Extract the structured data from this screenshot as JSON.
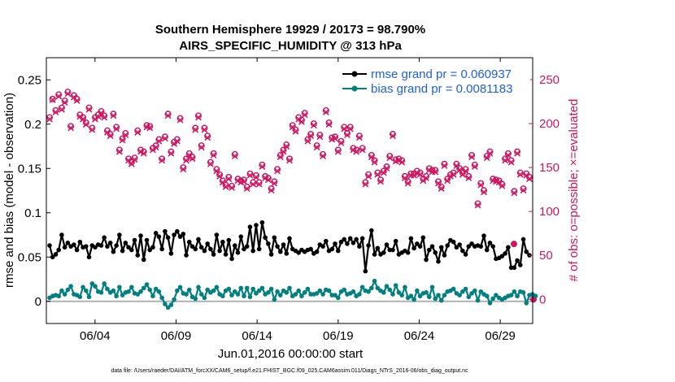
{
  "chart_data": {
    "type": "line",
    "title": [
      "Southern Hemisphere 19929 / 20173 = 98.790%",
      "AIRS_SPECIFIC_HUMIDITY @ 313 hPa"
    ],
    "xlabel": "Jun.01,2016 00:00:00 start",
    "ylabel_left": "rmse and bias (model - observation)",
    "ylabel_right": "# of obs: o=possible; ×=evaluated",
    "x_ticks": [
      "06/04",
      "06/09",
      "06/14",
      "06/19",
      "06/24",
      "06/29"
    ],
    "x_tick_days": [
      4,
      9,
      14,
      19,
      24,
      29
    ],
    "xlim": [
      1,
      31
    ],
    "ylim_left": [
      -0.025,
      0.275
    ],
    "y_ticks_left": [
      "0",
      "0.05",
      "0.1",
      "0.15",
      "0.2",
      "0.25"
    ],
    "y_tick_values_left": [
      0,
      0.05,
      0.1,
      0.15,
      0.2,
      0.25
    ],
    "ylim_right": [
      -27.5,
      275
    ],
    "y_ticks_right": [
      "0",
      "50",
      "100",
      "150",
      "200",
      "250"
    ],
    "y_tick_values_right": [
      0,
      50,
      100,
      150,
      200,
      250
    ],
    "colors": {
      "rmse": "#000000",
      "bias": "#00807f",
      "obs": "#d0155f",
      "legend_text": "#1f5fe0",
      "zero_line": "#b0b0b0"
    },
    "series": [
      {
        "name": "rmse grand pr = 0.060937",
        "axis": "left",
        "values": [
          0.063,
          0.05,
          0.053,
          0.058,
          0.075,
          0.061,
          0.066,
          0.062,
          0.064,
          0.058,
          0.067,
          0.061,
          0.062,
          0.05,
          0.063,
          0.061,
          0.064,
          0.063,
          0.072,
          0.062,
          0.066,
          0.056,
          0.063,
          0.075,
          0.057,
          0.066,
          0.061,
          0.058,
          0.069,
          0.052,
          0.074,
          0.047,
          0.069,
          0.058,
          0.061,
          0.077,
          0.073,
          0.059,
          0.079,
          0.072,
          0.054,
          0.075,
          0.079,
          0.073,
          0.076,
          0.052,
          0.067,
          0.062,
          0.059,
          0.07,
          0.061,
          0.057,
          0.065,
          0.059,
          0.053,
          0.075,
          0.057,
          0.067,
          0.053,
          0.069,
          0.048,
          0.063,
          0.055,
          0.073,
          0.059,
          0.062,
          0.084,
          0.057,
          0.086,
          0.059,
          0.089,
          0.072,
          0.065,
          0.053,
          0.072,
          0.062,
          0.056,
          0.064,
          0.054,
          0.071,
          0.059,
          0.057,
          0.055,
          0.058,
          0.056,
          0.058,
          0.059,
          0.054,
          0.056,
          0.064,
          0.062,
          0.068,
          0.057,
          0.059,
          0.065,
          0.057,
          0.067,
          0.07,
          0.065,
          0.071,
          0.066,
          0.07,
          0.062,
          0.071,
          0.034,
          0.063,
          0.08,
          0.053,
          0.06,
          0.053,
          0.055,
          0.064,
          0.058,
          0.058,
          0.068,
          0.053,
          0.055,
          0.057,
          0.055,
          0.071,
          0.06,
          0.065,
          0.062,
          0.072,
          0.047,
          0.058,
          0.062,
          0.055,
          0.045,
          0.061,
          0.052,
          0.063,
          0.069,
          0.067,
          0.061,
          0.064,
          0.057,
          0.053,
          0.062,
          0.065,
          0.062,
          0.063,
          0.062,
          0.074,
          0.058,
          0.066,
          0.062,
          0.048,
          0.049,
          0.051,
          0.054,
          0.061,
          0.038,
          0.038,
          0.046,
          0.041,
          0.07,
          0.056,
          0.052
        ]
      },
      {
        "name": "bias grand pr = 0.0081183",
        "axis": "left",
        "values": [
          0.004,
          0.006,
          0.007,
          0.006,
          0.012,
          0.008,
          0.013,
          0.017,
          0.008,
          0.007,
          0.005,
          0.016,
          0.012,
          0.005,
          0.02,
          0.017,
          0.011,
          0.01,
          0.02,
          0.014,
          0.01,
          0.012,
          0.006,
          0.016,
          0.007,
          0.01,
          0.011,
          0.016,
          0.009,
          0.008,
          0.011,
          0.015,
          0.019,
          0.013,
          0.006,
          0.014,
          0.011,
          0.004,
          -0.003,
          -0.007,
          -0.004,
          0.002,
          0.012,
          0.016,
          0.009,
          0.008,
          0.013,
          0.005,
          0.003,
          0.016,
          0.008,
          0.004,
          0.013,
          0.01,
          0.012,
          0.016,
          0.008,
          0.006,
          0.012,
          0.014,
          0.007,
          0.011,
          0.008,
          0.015,
          0.006,
          0.015,
          0.005,
          0.014,
          0.009,
          0.012,
          0.015,
          0.008,
          0.01,
          0.014,
          0.002,
          0.011,
          0.007,
          0.012,
          0.01,
          0.015,
          0.006,
          0.008,
          0.012,
          0.006,
          0.01,
          0.014,
          0.008,
          0.008,
          0.009,
          0.012,
          0.008,
          0.013,
          0.012,
          0.007,
          0.007,
          0.004,
          0.011,
          0.013,
          0.008,
          0.009,
          0.011,
          0.006,
          0.008,
          0.016,
          0.012,
          0.011,
          0.015,
          0.023,
          0.015,
          0.012,
          0.01,
          0.017,
          0.013,
          0.008,
          0.018,
          0.01,
          0.007,
          0.016,
          0.004,
          0.006,
          0.002,
          0.012,
          0.006,
          0.009,
          0.01,
          0.005,
          0.016,
          0.003,
          0.007,
          0.001,
          0.007,
          0.011,
          0.012,
          0.014,
          0.009,
          0.007,
          0.011,
          0.014,
          0.005,
          0.009,
          0.012,
          0.001,
          0.011,
          0.008,
          0.006,
          -0.002,
          0.003,
          0.007,
          0.004,
          0.002,
          0.004,
          0.006,
          0.007,
          0.011,
          0.006,
          0.011,
          0.01,
          -0.002,
          0.007,
          0.008,
          0.006
        ]
      },
      {
        "name": "# of obs possible",
        "axis": "right",
        "marker": "o",
        "values": [
          207,
          228,
          215,
          233,
          218,
          226,
          236,
          197,
          232,
          228,
          210,
          207,
          201,
          218,
          195,
          207,
          210,
          214,
          209,
          192,
          188,
          211,
          196,
          170,
          183,
          189,
          160,
          156,
          161,
          192,
          170,
          168,
          198,
          197,
          172,
          175,
          182,
          160,
          185,
          211,
          168,
          179,
          182,
          206,
          150,
          160,
          166,
          162,
          195,
          209,
          175,
          195,
          186,
          156,
          166,
          148,
          142,
          135,
          130,
          139,
          129,
          165,
          137,
          135,
          136,
          128,
          143,
          133,
          141,
          133,
          153,
          140,
          138,
          126,
          134,
          148,
          164,
          170,
          176,
          160,
          198,
          193,
          207,
          204,
          212,
          182,
          188,
          200,
          175,
          187,
          165,
          215,
          201,
          184,
          185,
          170,
          180,
          196,
          189,
          196,
          172,
          170,
          186,
          172,
          133,
          142,
          164,
          158,
          144,
          136,
          146,
          151,
          163,
          188,
          159,
          160,
          158,
          140,
          134,
          143,
          143,
          146,
          144,
          137,
          140,
          149,
          147,
          147,
          134,
          128,
          154,
          137,
          142,
          144,
          154,
          149,
          144,
          148,
          140,
          164,
          153,
          109,
          132,
          124,
          163,
          168,
          137,
          136,
          135,
          131,
          160,
          166,
          158,
          123,
          168,
          144,
          126,
          143,
          139
        ]
      },
      {
        "name": "# of obs evaluated",
        "axis": "right",
        "marker": "x",
        "values": [
          205,
          227,
          213,
          231,
          216,
          224,
          234,
          195,
          230,
          226,
          208,
          205,
          199,
          216,
          193,
          205,
          208,
          212,
          207,
          190,
          186,
          209,
          194,
          168,
          181,
          187,
          158,
          154,
          159,
          190,
          168,
          166,
          196,
          195,
          170,
          173,
          180,
          158,
          183,
          209,
          166,
          177,
          180,
          204,
          148,
          158,
          164,
          160,
          193,
          207,
          173,
          193,
          184,
          154,
          164,
          146,
          140,
          133,
          128,
          137,
          127,
          163,
          135,
          133,
          134,
          126,
          141,
          131,
          139,
          131,
          151,
          138,
          136,
          124,
          132,
          146,
          162,
          168,
          174,
          158,
          196,
          191,
          205,
          202,
          210,
          180,
          186,
          198,
          173,
          185,
          163,
          213,
          199,
          182,
          183,
          168,
          178,
          194,
          187,
          194,
          170,
          168,
          184,
          170,
          131,
          140,
          162,
          156,
          142,
          134,
          144,
          149,
          161,
          186,
          157,
          158,
          156,
          138,
          132,
          141,
          141,
          144,
          142,
          135,
          138,
          147,
          145,
          145,
          132,
          126,
          152,
          135,
          140,
          142,
          152,
          147,
          142,
          146,
          138,
          162,
          151,
          107,
          130,
          122,
          161,
          166,
          135,
          134,
          133,
          129,
          158,
          164,
          156,
          121,
          166,
          142,
          124,
          141,
          137
        ]
      }
    ],
    "right_axis_markers": {
      "possible_x_label": "o",
      "evaluated_x_label": "×"
    }
  },
  "footer": "data file: /Users/raeder/DAI/ATM_forcXX/CAM6_setup/f.e21.FHIST_BGC.f09_025.CAM6assim.011/Diags_NTrS_2016-06/obs_diag_output.nc"
}
